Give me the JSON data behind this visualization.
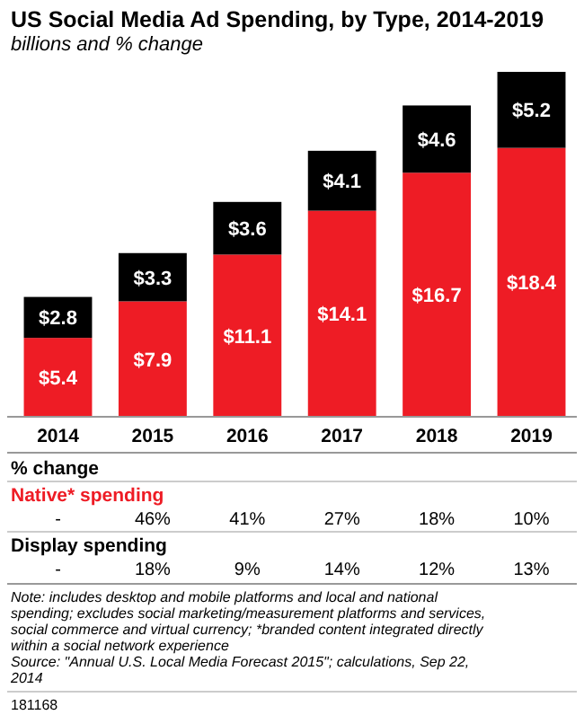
{
  "chart_data": {
    "type": "bar",
    "title": "US Social Media Ad Spending, by Type, 2014-2019",
    "subtitle": "billions and % change",
    "categories": [
      "2014",
      "2015",
      "2016",
      "2017",
      "2018",
      "2019"
    ],
    "stacked": true,
    "series": [
      {
        "name": "Native* spending",
        "color": "#ee1c25",
        "values": [
          5.4,
          7.9,
          11.1,
          14.1,
          16.7,
          18.4
        ],
        "value_labels": [
          "$5.4",
          "$7.9",
          "$11.1",
          "$14.1",
          "$16.7",
          "$18.4"
        ]
      },
      {
        "name": "Display spending",
        "color": "#000000",
        "values": [
          2.8,
          3.3,
          3.6,
          4.1,
          4.6,
          5.2
        ],
        "value_labels": [
          "$2.8",
          "$3.3",
          "$3.6",
          "$4.1",
          "$4.6",
          "$5.2"
        ]
      }
    ],
    "annotations": [
      "% change",
      "-",
      "46%",
      "41%",
      "27%",
      "18%",
      "10%",
      "-",
      "18%",
      "9%",
      "14%",
      "12%",
      "13%",
      "Note: includes desktop and mobile platforms and local and national spending; excludes social marketing/measurement platforms and services, social commerce and virtual currency; *branded content integrated directly within a social network experience",
      "Source: \"Annual U.S. Local Media Forecast 2015\"; calculations, Sep 22, 2014",
      "181168"
    ]
  }
}
